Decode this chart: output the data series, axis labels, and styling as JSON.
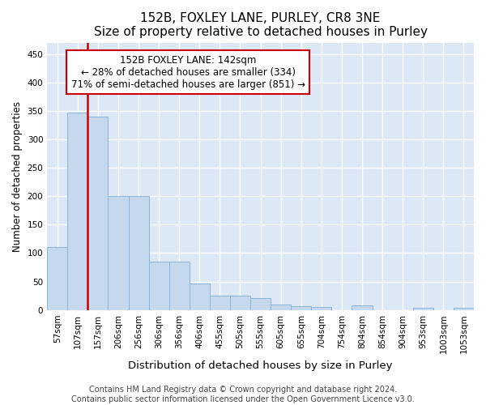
{
  "title": "152B, FOXLEY LANE, PURLEY, CR8 3NE",
  "subtitle": "Size of property relative to detached houses in Purley",
  "xlabel": "Distribution of detached houses by size in Purley",
  "ylabel": "Number of detached properties",
  "bar_color": "#c5d8ee",
  "bar_edge_color": "#8ab4d8",
  "background_color": "#dce8f5",
  "grid_color": "#ffffff",
  "fig_background": "#ffffff",
  "bin_labels": [
    "57sqm",
    "107sqm",
    "157sqm",
    "206sqm",
    "256sqm",
    "306sqm",
    "356sqm",
    "406sqm",
    "455sqm",
    "505sqm",
    "555sqm",
    "605sqm",
    "655sqm",
    "704sqm",
    "754sqm",
    "804sqm",
    "854sqm",
    "904sqm",
    "953sqm",
    "1003sqm",
    "1053sqm"
  ],
  "values": [
    110,
    347,
    340,
    200,
    200,
    85,
    85,
    47,
    25,
    25,
    21,
    10,
    7,
    5,
    0,
    8,
    0,
    0,
    4,
    0,
    4
  ],
  "ylim": [
    0,
    470
  ],
  "yticks": [
    0,
    50,
    100,
    150,
    200,
    250,
    300,
    350,
    400,
    450
  ],
  "property_label": "152B FOXLEY LANE: 142sqm",
  "annotation_line1": "← 28% of detached houses are smaller (334)",
  "annotation_line2": "71% of semi-detached houses are larger (851) →",
  "vline_color": "#cc0000",
  "annotation_box_edge": "#cc0000",
  "footer_text": "Contains HM Land Registry data © Crown copyright and database right 2024.\nContains public sector information licensed under the Open Government Licence v3.0.",
  "title_fontsize": 11,
  "xlabel_fontsize": 9.5,
  "ylabel_fontsize": 8.5,
  "tick_fontsize": 7.5,
  "footer_fontsize": 7
}
